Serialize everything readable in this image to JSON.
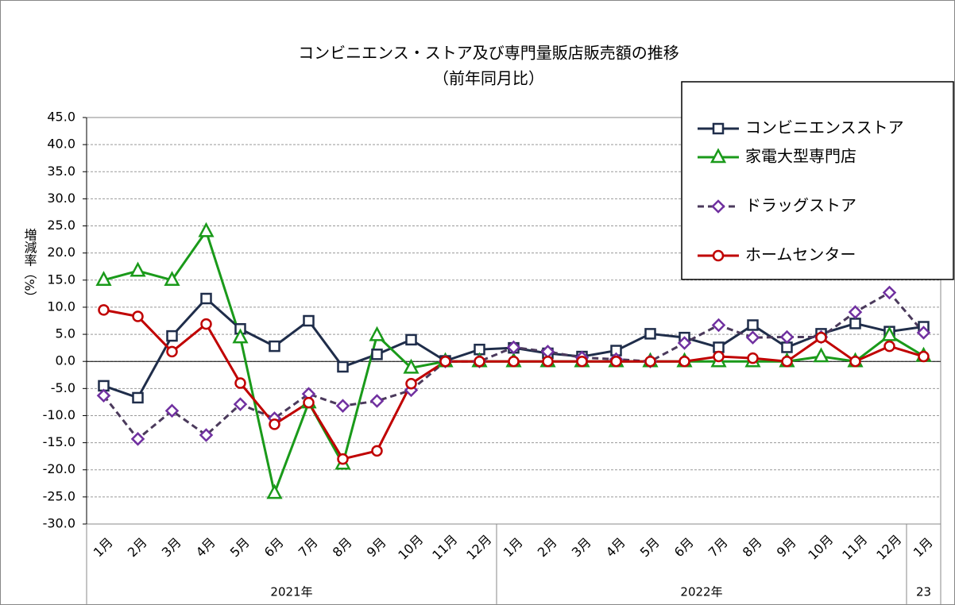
{
  "chart_data": {
    "type": "line",
    "title": "コンビニエンス・ストア及び専門量販店販売額の推移",
    "subtitle": "（前年同月比）",
    "y_label": "増減率（%）",
    "categories": [
      "1月",
      "2月",
      "3月",
      "4月",
      "5月",
      "6月",
      "7月",
      "8月",
      "9月",
      "10月",
      "11月",
      "12月",
      "1月",
      "2月",
      "3月",
      "4月",
      "5月",
      "6月",
      "7月",
      "8月",
      "9月",
      "10月",
      "11月",
      "12月",
      "1月"
    ],
    "groups": [
      "2021年",
      "2022年",
      "23"
    ],
    "ylim": [
      -30,
      45
    ],
    "yticks": [
      {
        "value": 45,
        "label": "45.0"
      },
      {
        "value": 40,
        "label": "40.0"
      },
      {
        "value": 35,
        "label": "35.0"
      },
      {
        "value": 30,
        "label": "30.0"
      },
      {
        "value": 25,
        "label": "25.0"
      },
      {
        "value": 20,
        "label": "20.0"
      },
      {
        "value": 15,
        "label": "15.0"
      },
      {
        "value": 10,
        "label": "10.0"
      },
      {
        "value": 5,
        "label": "5.0"
      },
      {
        "value": 0,
        "label": "0.0"
      },
      {
        "value": -5,
        "label": "-5.0"
      },
      {
        "value": -10,
        "label": "-10.0"
      },
      {
        "value": -15,
        "label": "-15.0"
      },
      {
        "value": -20,
        "label": "-20.0"
      },
      {
        "value": -25,
        "label": "-25.0"
      },
      {
        "value": -30,
        "label": "-30.0"
      }
    ],
    "grid": true,
    "legend": "top-right",
    "series": [
      {
        "name": "コンビニエンスストア",
        "color": "#1f2d4a",
        "marker": "square",
        "dash": false,
        "values": [
          -4.5,
          -6.7,
          4.7,
          11.6,
          6.0,
          2.8,
          7.5,
          -1.0,
          1.3,
          4.0,
          0.1,
          2.2,
          2.5,
          1.5,
          0.9,
          2.0,
          5.1,
          4.4,
          2.6,
          6.7,
          2.6,
          5.1,
          7.0,
          5.5,
          6.4
        ]
      },
      {
        "name": "家電大型専門店",
        "color": "#1a9a1a",
        "marker": "triangle",
        "dash": false,
        "values": [
          15.0,
          16.7,
          15.0,
          24.0,
          4.4,
          -24.3,
          -7.6,
          -18.9,
          4.8,
          -1.2,
          0,
          0,
          0,
          0,
          0,
          0,
          0,
          0,
          0,
          0,
          0,
          0.9,
          0,
          4.8,
          1.0
        ]
      },
      {
        "name": "ドラッグストア",
        "color": "#4b3a5c",
        "marker_color": "#7030a0",
        "marker": "diamond",
        "dash": true,
        "values": [
          -6.3,
          -14.3,
          -9.1,
          -13.6,
          -7.9,
          -10.5,
          -6.0,
          -8.2,
          -7.3,
          -5.3,
          0,
          0,
          2.6,
          1.8,
          0.7,
          0.4,
          0,
          3.4,
          6.7,
          4.4,
          4.5,
          4.5,
          9.1,
          12.7,
          5.3
        ]
      },
      {
        "name": "ホームセンター",
        "color": "#c00000",
        "marker": "circle",
        "dash": false,
        "values": [
          9.5,
          8.3,
          1.8,
          6.9,
          -4.0,
          -11.6,
          -7.6,
          -18.0,
          -16.5,
          -4.1,
          0,
          0,
          0,
          0,
          0,
          0,
          0,
          0,
          0.9,
          0.6,
          0,
          4.4,
          0,
          2.8,
          0.9
        ]
      }
    ]
  }
}
